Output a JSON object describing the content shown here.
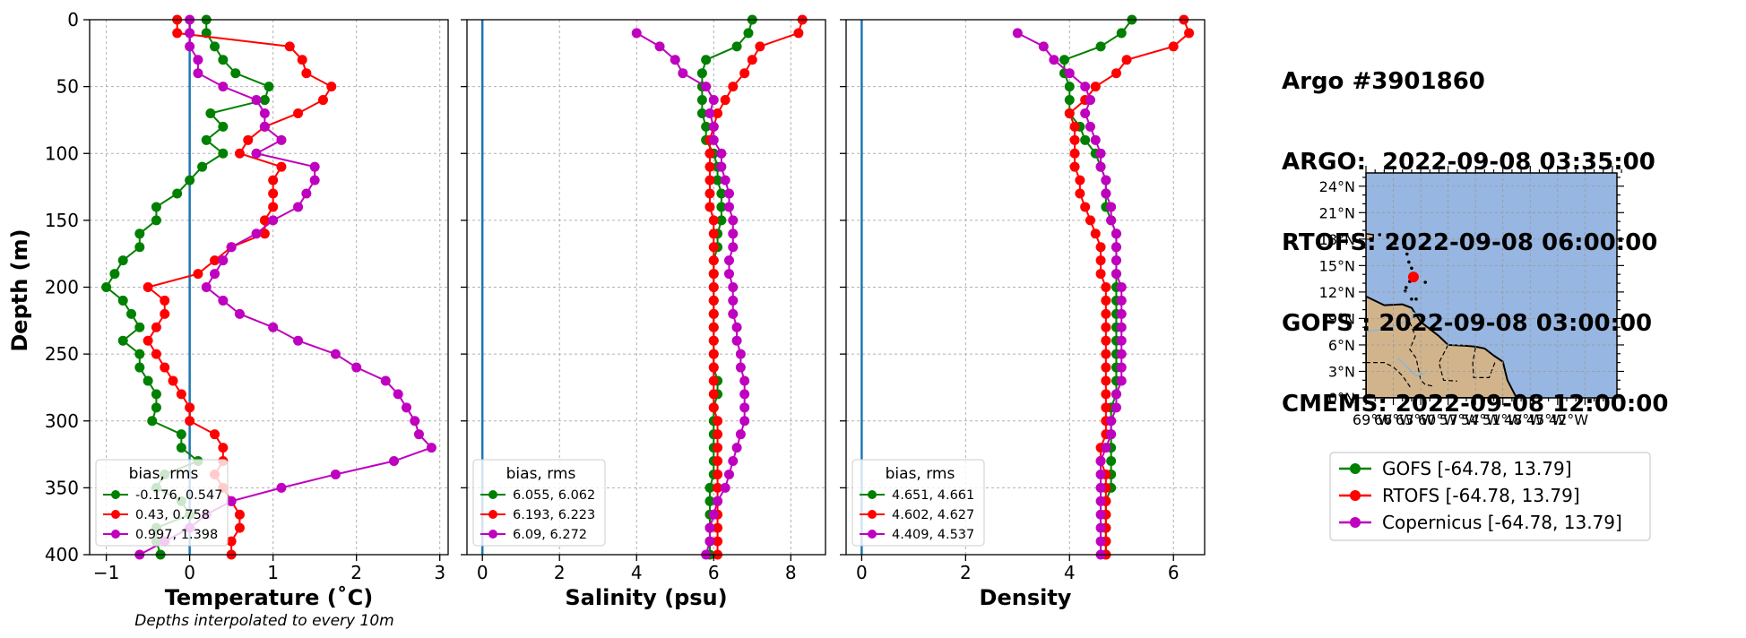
{
  "figure": {
    "note": "Depths interpolated to every 10m",
    "info_lines": [
      "Argo #3901860",
      "ARGO:  2022-09-08 03:35:00",
      "RTOFS: 2022-09-08 06:00:00",
      "GOFS : 2022-09-08 03:00:00",
      "CMEMS: 2022-09-08 12:00:00"
    ]
  },
  "chart_data": [
    {
      "type": "line",
      "xlabel": "Temperature (˚C)",
      "ylabel": "Depth (m)",
      "xlim": [
        -1.2,
        3.1
      ],
      "ylim": [
        400,
        0
      ],
      "xticks": [
        "−1",
        "0",
        "1",
        "2",
        "3"
      ],
      "xtick_values": [
        -1,
        0,
        1,
        2,
        3
      ],
      "yticks": [
        "0",
        "50",
        "100",
        "150",
        "200",
        "250",
        "300",
        "350",
        "400"
      ],
      "ytick_values": [
        0,
        50,
        100,
        150,
        200,
        250,
        300,
        350,
        400
      ],
      "grid": true,
      "zero_line": 0,
      "legend": {
        "title": "bias, rms",
        "placement": "lower-left",
        "entries": [
          "-0.176, 0.547",
          "0.43, 0.758",
          "0.997, 1.398"
        ]
      },
      "depth": [
        0,
        10,
        20,
        30,
        40,
        50,
        60,
        70,
        80,
        90,
        100,
        110,
        120,
        130,
        140,
        150,
        160,
        170,
        180,
        190,
        200,
        210,
        220,
        230,
        240,
        250,
        260,
        270,
        280,
        290,
        300,
        310,
        320,
        330,
        340,
        350,
        360,
        370,
        380,
        390,
        400
      ],
      "series": [
        {
          "color": "#008000",
          "values": [
            0.2,
            0.2,
            0.3,
            0.4,
            0.55,
            0.95,
            0.9,
            0.25,
            0.4,
            0.2,
            0.4,
            0.15,
            0.0,
            -0.15,
            -0.4,
            -0.4,
            -0.6,
            -0.6,
            -0.8,
            -0.9,
            -1.0,
            -0.8,
            -0.7,
            -0.6,
            -0.8,
            -0.6,
            -0.6,
            -0.5,
            -0.4,
            -0.4,
            -0.45,
            -0.1,
            -0.1,
            0.1,
            -0.3,
            -0.4,
            -0.1,
            0.0,
            -0.4,
            -0.4,
            -0.35
          ]
        },
        {
          "color": "#ff0000",
          "values": [
            -0.15,
            -0.15,
            1.2,
            1.35,
            1.4,
            1.7,
            1.6,
            1.3,
            0.9,
            0.7,
            0.6,
            1.1,
            1.0,
            1.0,
            1.0,
            0.9,
            0.9,
            0.5,
            0.3,
            0.1,
            -0.5,
            -0.3,
            -0.3,
            -0.4,
            -0.5,
            -0.4,
            -0.3,
            -0.2,
            -0.1,
            0.0,
            0.0,
            0.3,
            0.4,
            0.4,
            0.3,
            0.4,
            0.5,
            0.6,
            0.6,
            0.5,
            0.5
          ]
        },
        {
          "color": "#bf00bf",
          "values": [
            0.0,
            0.0,
            0.0,
            0.1,
            0.1,
            0.4,
            0.8,
            0.9,
            0.9,
            1.1,
            0.8,
            1.5,
            1.5,
            1.4,
            1.3,
            1.0,
            0.8,
            0.5,
            0.4,
            0.3,
            0.2,
            0.4,
            0.6,
            1.0,
            1.3,
            1.75,
            2.0,
            2.35,
            2.5,
            2.6,
            2.7,
            2.75,
            2.9,
            2.45,
            1.75,
            1.1,
            0.5,
            0.2,
            0.0,
            -0.3,
            -0.6
          ]
        }
      ]
    },
    {
      "type": "line",
      "xlabel": "Salinity (psu)",
      "xlim": [
        -0.4,
        8.9
      ],
      "ylim": [
        400,
        0
      ],
      "xticks": [
        "0",
        "2",
        "4",
        "6",
        "8"
      ],
      "xtick_values": [
        0,
        2,
        4,
        6,
        8
      ],
      "grid": true,
      "zero_line": 0,
      "legend": {
        "title": "bias, rms",
        "placement": "lower-left",
        "entries": [
          "6.055, 6.062",
          "6.193, 6.223",
          "6.09, 6.272"
        ]
      },
      "depth": [
        0,
        10,
        20,
        30,
        40,
        50,
        60,
        70,
        80,
        90,
        100,
        110,
        120,
        130,
        140,
        150,
        160,
        170,
        180,
        190,
        200,
        210,
        220,
        230,
        240,
        250,
        260,
        270,
        280,
        290,
        300,
        310,
        320,
        330,
        340,
        350,
        360,
        370,
        380,
        390,
        400
      ],
      "series": [
        {
          "color": "#008000",
          "values": [
            7.0,
            6.9,
            6.6,
            5.8,
            5.7,
            5.7,
            5.7,
            5.7,
            5.8,
            5.8,
            6.0,
            6.1,
            6.1,
            6.2,
            6.2,
            6.2,
            6.1,
            6.1,
            6.0,
            6.0,
            6.0,
            6.0,
            6.0,
            6.0,
            6.0,
            6.0,
            6.0,
            6.1,
            6.1,
            6.0,
            6.0,
            6.0,
            6.0,
            6.0,
            6.0,
            5.9,
            5.9,
            5.9,
            5.9,
            5.9,
            5.9
          ]
        },
        {
          "color": "#ff0000",
          "values": [
            8.3,
            8.2,
            7.2,
            7.0,
            6.8,
            6.5,
            6.3,
            6.1,
            6.0,
            5.9,
            5.9,
            5.9,
            5.9,
            5.9,
            5.9,
            6.0,
            6.0,
            6.0,
            6.0,
            6.0,
            6.0,
            6.0,
            6.0,
            6.0,
            6.0,
            6.0,
            6.0,
            6.0,
            6.0,
            6.0,
            6.1,
            6.1,
            6.1,
            6.1,
            6.1,
            6.1,
            6.1,
            6.1,
            6.1,
            6.1,
            6.1
          ]
        },
        {
          "color": "#bf00bf",
          "values": [
            null,
            4.0,
            4.6,
            5.0,
            5.2,
            5.8,
            6.0,
            5.9,
            6.0,
            6.0,
            6.2,
            6.2,
            6.3,
            6.4,
            6.4,
            6.5,
            6.5,
            6.5,
            6.4,
            6.4,
            6.5,
            6.5,
            6.5,
            6.6,
            6.6,
            6.7,
            6.7,
            6.8,
            6.8,
            6.8,
            6.8,
            6.7,
            6.6,
            6.5,
            6.4,
            6.3,
            6.1,
            6.0,
            5.9,
            5.9,
            5.8
          ]
        }
      ]
    },
    {
      "type": "line",
      "xlabel": "Density",
      "xlim": [
        -0.3,
        6.6
      ],
      "ylim": [
        400,
        0
      ],
      "xticks": [
        "0",
        "2",
        "4",
        "6"
      ],
      "xtick_values": [
        0,
        2,
        4,
        6
      ],
      "grid": true,
      "zero_line": 0,
      "legend": {
        "title": "bias, rms",
        "placement": "lower-left",
        "entries": [
          "4.651, 4.661",
          "4.602, 4.627",
          "4.409, 4.537"
        ]
      },
      "depth": [
        0,
        10,
        20,
        30,
        40,
        50,
        60,
        70,
        80,
        90,
        100,
        110,
        120,
        130,
        140,
        150,
        160,
        170,
        180,
        190,
        200,
        210,
        220,
        230,
        240,
        250,
        260,
        270,
        280,
        290,
        300,
        310,
        320,
        330,
        340,
        350,
        360,
        370,
        380,
        390,
        400
      ],
      "series": [
        {
          "color": "#008000",
          "values": [
            5.2,
            5.0,
            4.6,
            3.9,
            3.9,
            4.0,
            4.0,
            4.0,
            4.2,
            4.3,
            4.5,
            4.6,
            4.7,
            4.7,
            4.7,
            4.8,
            4.9,
            4.9,
            4.9,
            4.9,
            4.9,
            4.9,
            4.9,
            4.9,
            4.9,
            4.9,
            4.9,
            4.9,
            4.9,
            4.8,
            4.8,
            4.8,
            4.8,
            4.8,
            4.8,
            4.8,
            4.7,
            4.7,
            4.7,
            4.7,
            4.7
          ]
        },
        {
          "color": "#ff0000",
          "values": [
            6.2,
            6.3,
            6.0,
            5.1,
            4.9,
            4.5,
            4.3,
            4.0,
            4.1,
            4.1,
            4.1,
            4.1,
            4.2,
            4.2,
            4.3,
            4.4,
            4.5,
            4.6,
            4.6,
            4.6,
            4.7,
            4.7,
            4.7,
            4.7,
            4.7,
            4.7,
            4.7,
            4.7,
            4.7,
            4.7,
            4.7,
            4.7,
            4.6,
            4.6,
            4.7,
            4.7,
            4.7,
            4.7,
            4.7,
            4.7,
            4.7
          ]
        },
        {
          "color": "#bf00bf",
          "values": [
            null,
            3.0,
            3.5,
            3.7,
            4.0,
            4.3,
            4.4,
            4.3,
            4.4,
            4.5,
            4.6,
            4.6,
            4.7,
            4.7,
            4.8,
            4.8,
            4.9,
            4.9,
            4.9,
            4.9,
            5.0,
            5.0,
            5.0,
            5.0,
            5.0,
            5.0,
            5.0,
            5.0,
            4.9,
            4.9,
            4.8,
            4.8,
            4.7,
            4.6,
            4.6,
            4.6,
            4.6,
            4.6,
            4.6,
            4.6,
            4.6
          ]
        }
      ]
    }
  ],
  "map": {
    "lat_ticks": [
      "0°N",
      "3°N",
      "6°N",
      "9°N",
      "12°N",
      "15°N",
      "18°N",
      "21°N",
      "24°N"
    ],
    "lat_values": [
      0,
      3,
      6,
      9,
      12,
      15,
      18,
      21,
      24
    ],
    "lon_ticks": [
      "69°W",
      "66°W",
      "63°W",
      "60°W",
      "57°W",
      "54°W",
      "51°W",
      "48°W",
      "45°W",
      "42°W"
    ],
    "lon_values": [
      -69,
      -66,
      -63,
      -60,
      -57,
      -54,
      -51,
      -48,
      -45,
      -42
    ],
    "lon_range": [
      -66,
      -38.5
    ],
    "lat_range": [
      0,
      25.5
    ],
    "ocean_color": "#97b6e1",
    "land_color": "#d2b48c",
    "marker": {
      "lon": -60.8,
      "lat": 13.7,
      "color": "#ff0000"
    }
  },
  "map_legend": {
    "entries": [
      {
        "label": "GOFS [-64.78, 13.79]",
        "color": "#008000"
      },
      {
        "label": "RTOFS [-64.78, 13.79]",
        "color": "#ff0000"
      },
      {
        "label": "Copernicus [-64.78, 13.79]",
        "color": "#bf00bf"
      }
    ]
  }
}
